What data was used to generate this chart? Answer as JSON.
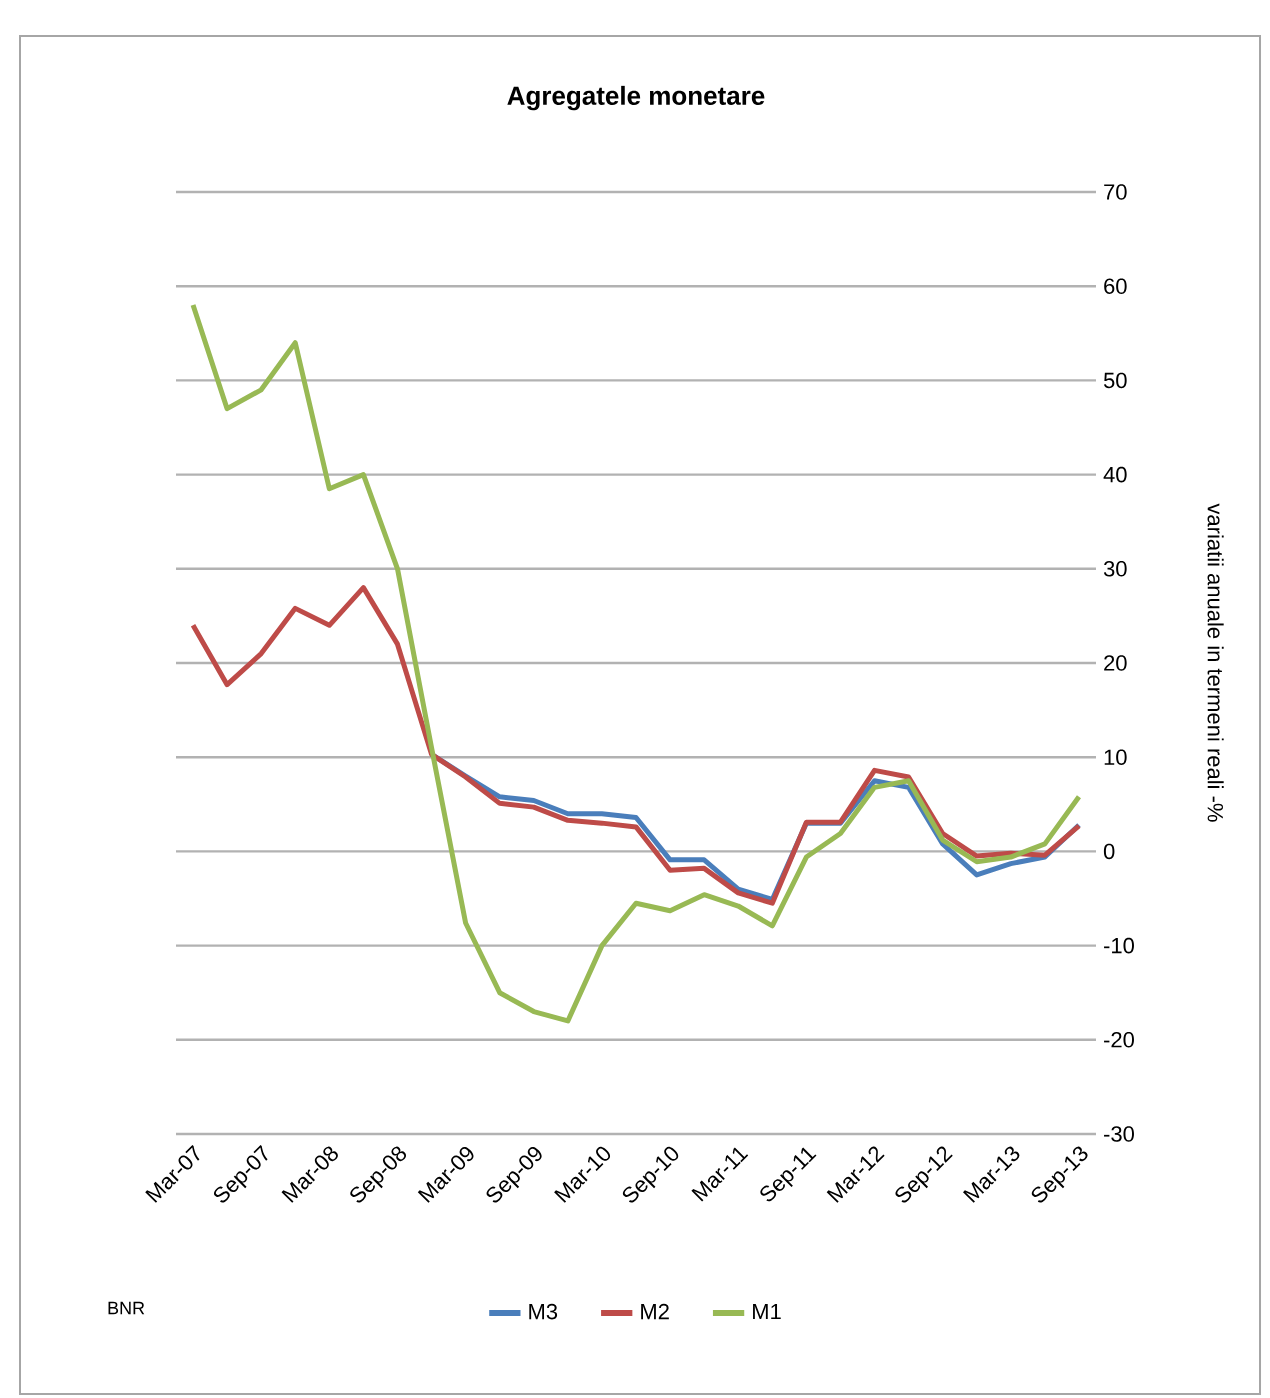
{
  "chart_data": {
    "type": "line",
    "title": "Agregatele monetare",
    "ylabel": "variatii anuale in termeni reali -%",
    "categories": [
      "Mar-07",
      null,
      "Sep-07",
      null,
      "Mar-08",
      null,
      "Sep-08",
      null,
      "Mar-09",
      null,
      "Sep-09",
      null,
      "Mar-10",
      null,
      "Sep-10",
      null,
      "Mar-11",
      null,
      "Sep-11",
      null,
      "Mar-12",
      null,
      "Sep-12",
      null,
      "Mar-13",
      null,
      "Sep-13"
    ],
    "series": [
      {
        "name": "M3",
        "color": "#4a7ebb",
        "values": [
          null,
          null,
          null,
          null,
          null,
          null,
          null,
          10.3,
          8,
          5.8,
          5.4,
          4,
          4,
          3.6,
          -0.9,
          -0.9,
          -4,
          -5.1,
          3,
          3,
          7.5,
          6.8,
          0.8,
          -2.5,
          -1.3,
          -0.6,
          2.8
        ]
      },
      {
        "name": "M2",
        "color": "#be4b48",
        "values": [
          24,
          17.7,
          21,
          25.8,
          24,
          28,
          22,
          10.3,
          7.9,
          5.1,
          4.7,
          3.3,
          3,
          2.6,
          -2,
          -1.8,
          -4.4,
          -5.5,
          3.1,
          3.1,
          8.6,
          7.9,
          1.9,
          -0.5,
          -0.2,
          -0.4,
          2.7
        ]
      },
      {
        "name": "M1",
        "color": "#98b954",
        "values": [
          58,
          47,
          49,
          54,
          38.5,
          40,
          30,
          11,
          -7.6,
          -15,
          -17,
          -18,
          -10,
          -5.5,
          -6.3,
          -4.6,
          -5.8,
          -7.9,
          -0.6,
          1.9,
          6.8,
          7.5,
          1.2,
          -1.1,
          -0.6,
          0.8,
          5.8
        ]
      }
    ],
    "ylim": [
      -30,
      70
    ],
    "yticks": [
      -30,
      -20,
      -10,
      0,
      10,
      20,
      30,
      40,
      50,
      60,
      70
    ],
    "grid": "y",
    "legend": "bottom",
    "marker": "none",
    "line_style": "solid",
    "annotations": [
      "BNR"
    ]
  }
}
